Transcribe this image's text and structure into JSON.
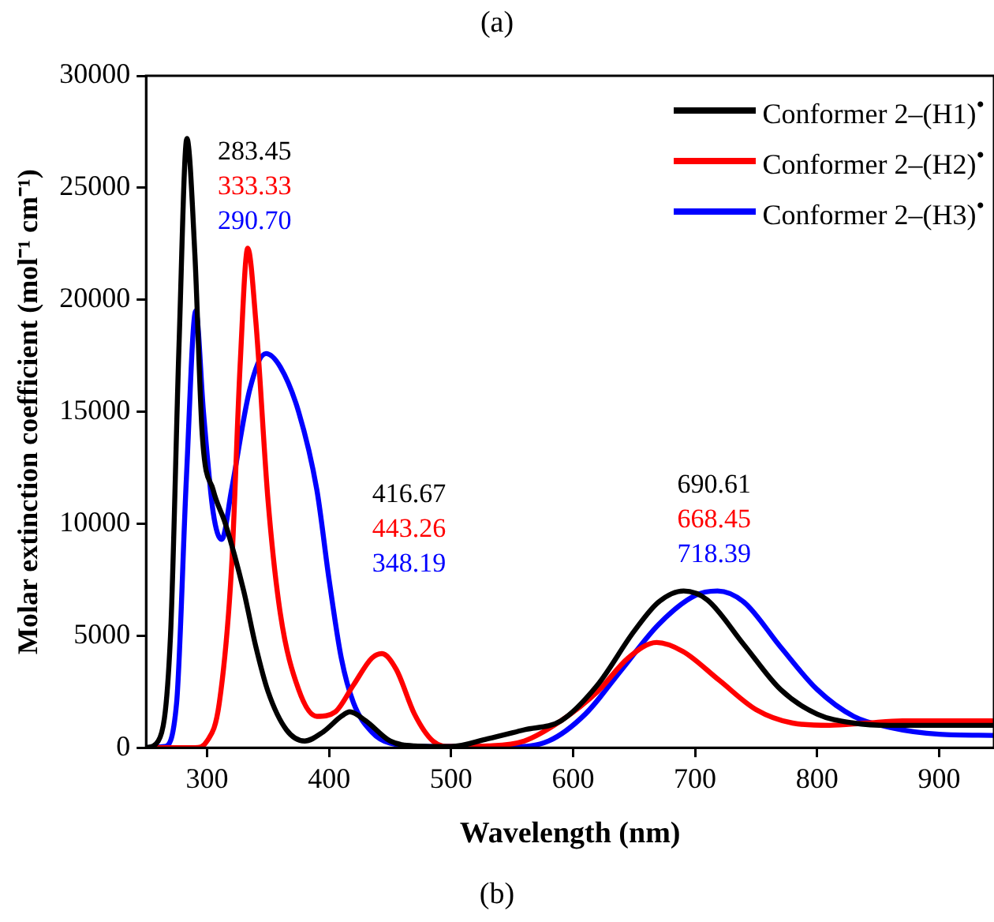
{
  "chart_data": {
    "type": "line",
    "xlabel": "Wavelength (nm)",
    "ylabel": "Molar extinction coefficient (mol⁻¹ cm⁻¹)",
    "xlim": [
      250,
      945
    ],
    "xticks": [
      300,
      400,
      500,
      600,
      700,
      800,
      900
    ],
    "ylim": [
      0,
      30000
    ],
    "yticks": [
      0,
      5000,
      10000,
      15000,
      20000,
      25000,
      30000
    ],
    "grid": false,
    "legend": "top right",
    "marker": "none",
    "line_style": "solid",
    "series": [
      {
        "name": "Conformer 2–(H1)$^{•}$",
        "color": "#000000",
        "x": [
          250,
          260,
          270,
          277,
          283.45,
          290,
          296,
          305,
          315,
          330,
          340,
          350,
          365,
          380,
          395,
          410,
          417,
          430,
          450,
          470,
          500,
          530,
          560,
          590,
          620,
          650,
          670,
          690.61,
          710,
          740,
          770,
          800,
          830,
          860,
          900,
          945
        ],
        "values": [
          0,
          300,
          5000,
          18000,
          27200,
          22000,
          14000,
          11500,
          10000,
          7000,
          4500,
          2500,
          800,
          300,
          700,
          1400,
          1600,
          1200,
          300,
          80,
          50,
          400,
          800,
          1200,
          2800,
          5200,
          6500,
          7000,
          6600,
          4600,
          2600,
          1500,
          1100,
          1000,
          1000,
          1000
        ]
      },
      {
        "name": "Conformer 2–(H2)$^{•}$",
        "color": "#ff0000",
        "x": [
          250,
          290,
          300,
          310,
          320,
          327,
          333.33,
          340,
          350,
          360,
          375,
          390,
          405,
          420,
          435,
          443.26,
          455,
          470,
          485,
          500,
          530,
          560,
          590,
          620,
          645,
          668.45,
          690,
          720,
          750,
          780,
          810,
          840,
          870,
          945
        ],
        "values": [
          0,
          0,
          300,
          2000,
          8000,
          17000,
          22300,
          19000,
          11000,
          6000,
          2600,
          1400,
          1600,
          2800,
          4000,
          4200,
          3500,
          1500,
          300,
          50,
          80,
          300,
          1200,
          2500,
          4000,
          4700,
          4300,
          3000,
          1700,
          1100,
          1000,
          1100,
          1200,
          1200
        ]
      },
      {
        "name": "Conformer 2–(H3)$^{•}$",
        "color": "#0000ff",
        "x": [
          250,
          265,
          275,
          283,
          290.7,
          297,
          305,
          312,
          320,
          335,
          348.19,
          360,
          375,
          390,
          400,
          410,
          420,
          435,
          450,
          480,
          550,
          580,
          610,
          640,
          670,
          700,
          718.39,
          740,
          770,
          800,
          830,
          860,
          900,
          945
        ],
        "values": [
          0,
          50,
          2000,
          12000,
          19500,
          15000,
          10500,
          9300,
          11500,
          16000,
          17600,
          17000,
          15000,
          11500,
          7500,
          4000,
          2000,
          700,
          200,
          50,
          50,
          300,
          1500,
          3500,
          5500,
          6800,
          7000,
          6500,
          4500,
          2600,
          1400,
          900,
          600,
          550
        ]
      }
    ],
    "annotations": [
      "(a)",
      "(b)",
      "283.45",
      "333.33",
      "290.70",
      "416.67",
      "443.26",
      "348.19",
      "690.61",
      "668.45",
      "718.39"
    ]
  }
}
